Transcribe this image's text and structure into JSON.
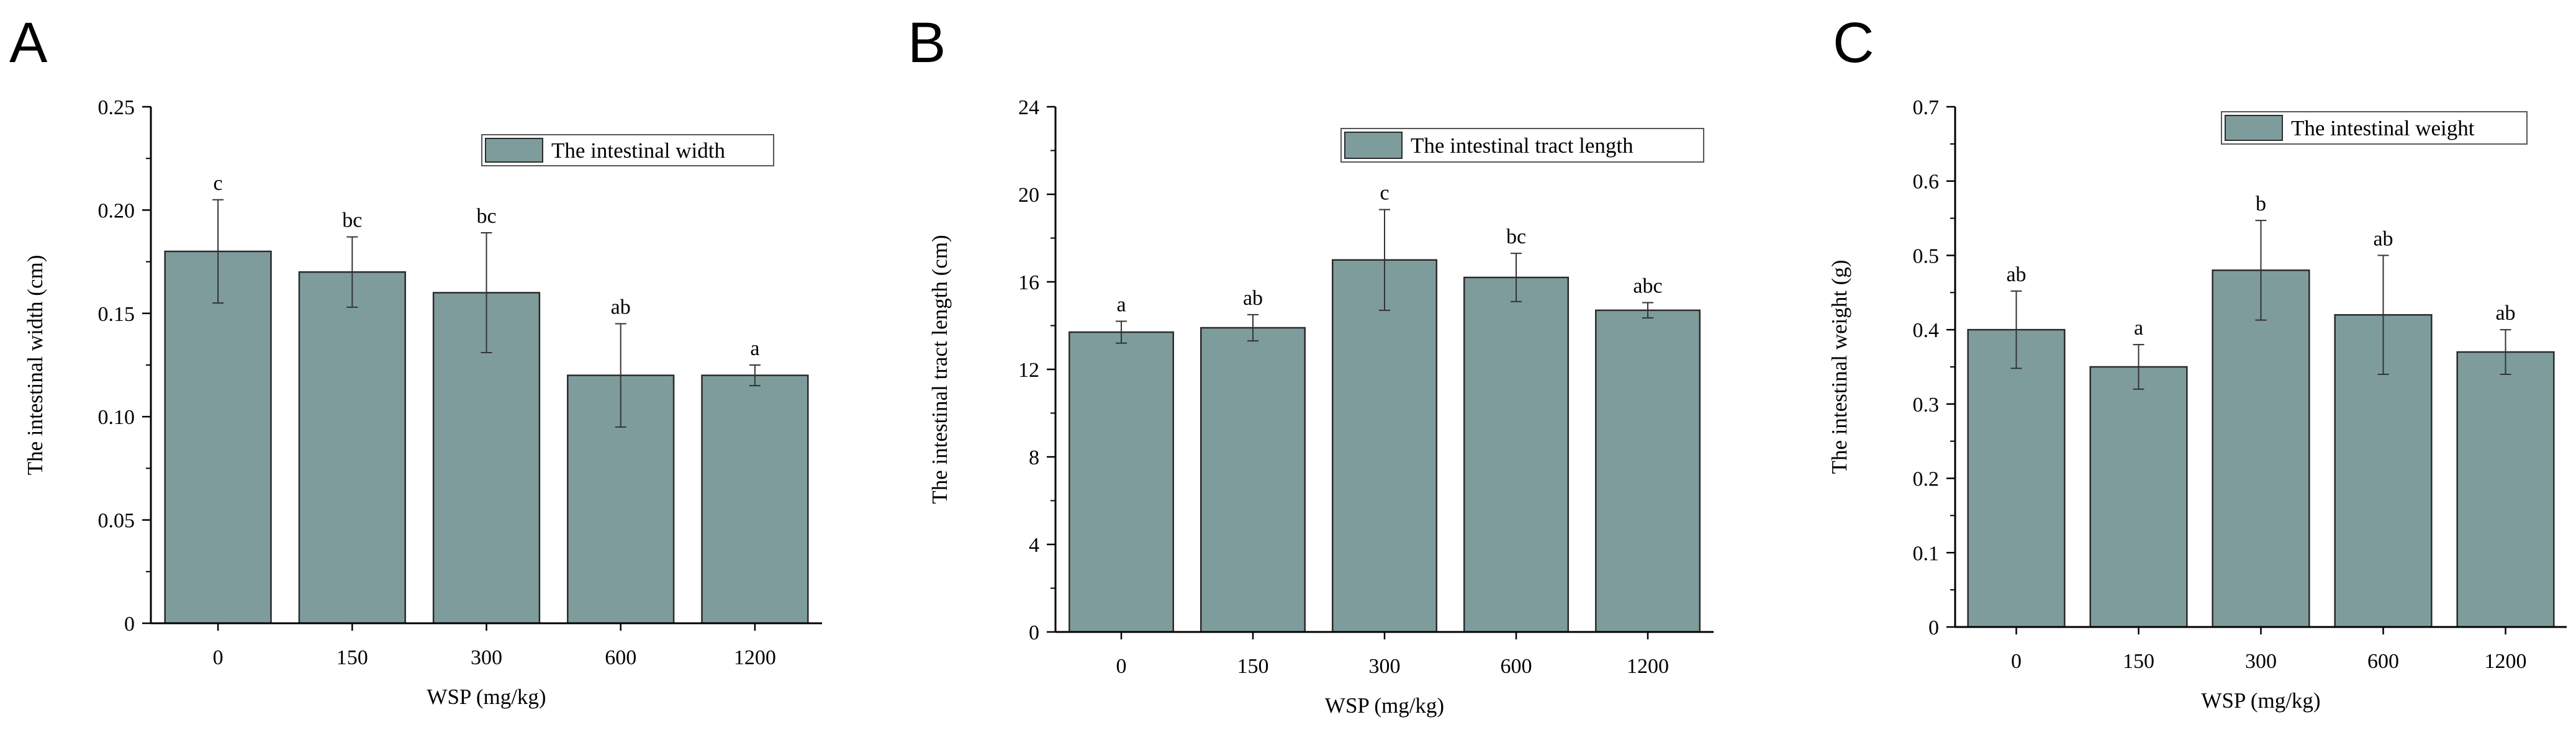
{
  "colors": {
    "bar": "#7f9c9c",
    "bar_edge": "#2b2b2b",
    "axis": "#000000"
  },
  "chart_data": [
    {
      "type": "bar",
      "panel": "A",
      "title": "",
      "xlabel": "WSP (mg/kg)",
      "ylabel": "The intestinal width (cm)",
      "ylim": [
        0,
        0.25
      ],
      "yticks": [
        0,
        0.05,
        0.1,
        0.15,
        0.2,
        0.25
      ],
      "ytick_labels": [
        "0",
        "0.05",
        "0.10",
        "0.15",
        "0.20",
        "0.25"
      ],
      "categories": [
        "0",
        "150",
        "300",
        "600",
        "1200"
      ],
      "series": [
        {
          "name": "The intestinal width",
          "values": [
            0.18,
            0.17,
            0.16,
            0.12,
            0.12
          ],
          "errors": [
            0.025,
            0.017,
            0.029,
            0.025,
            0.005
          ],
          "labels": [
            "c",
            "bc",
            "bc",
            "ab",
            "a"
          ]
        }
      ],
      "legend": "top-right",
      "grid": false
    },
    {
      "type": "bar",
      "panel": "B",
      "title": "",
      "xlabel": "WSP (mg/kg)",
      "ylabel": "The intestinal tract length (cm)",
      "ylim": [
        0,
        24
      ],
      "yticks": [
        0,
        4,
        8,
        12,
        16,
        20,
        24
      ],
      "ytick_labels": [
        "0",
        "4",
        "8",
        "12",
        "16",
        "20",
        "24"
      ],
      "categories": [
        "0",
        "150",
        "300",
        "600",
        "1200"
      ],
      "series": [
        {
          "name": "The intestinal tract length",
          "values": [
            13.7,
            13.9,
            17.0,
            16.2,
            14.7
          ],
          "errors": [
            0.5,
            0.6,
            2.3,
            1.1,
            0.35
          ],
          "labels": [
            "a",
            "ab",
            "c",
            "bc",
            "abc"
          ]
        }
      ],
      "legend": "top-right",
      "grid": false
    },
    {
      "type": "bar",
      "panel": "C",
      "title": "",
      "xlabel": "WSP (mg/kg)",
      "ylabel": "The intestinal weight (g)",
      "ylim": [
        0,
        0.7
      ],
      "yticks": [
        0,
        0.1,
        0.2,
        0.3,
        0.4,
        0.5,
        0.6,
        0.7
      ],
      "ytick_labels": [
        "0",
        "0.1",
        "0.2",
        "0.3",
        "0.4",
        "0.5",
        "0.6",
        "0.7"
      ],
      "categories": [
        "0",
        "150",
        "300",
        "600",
        "1200"
      ],
      "series": [
        {
          "name": "The intestinal weight",
          "values": [
            0.4,
            0.35,
            0.48,
            0.42,
            0.37
          ],
          "errors": [
            0.052,
            0.03,
            0.067,
            0.08,
            0.03
          ],
          "labels": [
            "ab",
            "a",
            "b",
            "ab",
            "ab"
          ]
        }
      ],
      "legend": "top-right",
      "grid": false
    }
  ]
}
